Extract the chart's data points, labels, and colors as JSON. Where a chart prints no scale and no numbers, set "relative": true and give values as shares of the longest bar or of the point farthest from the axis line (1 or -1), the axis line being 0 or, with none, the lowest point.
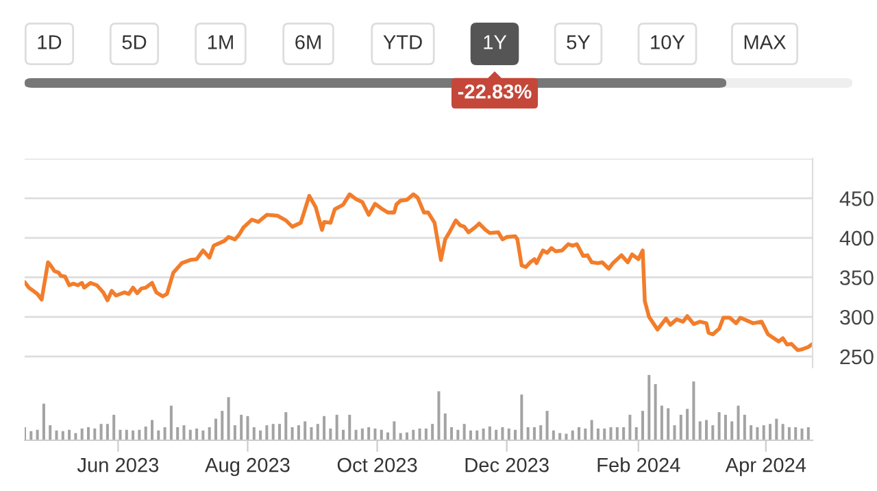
{
  "chart_data": [
    {
      "type": "line",
      "color": "#f27d2b",
      "annotations": [
        "1D",
        "5D",
        "1M",
        "6M",
        "YTD",
        "1Y",
        "5Y",
        "10Y",
        "MAX",
        "-22.83%"
      ],
      "x": [
        "2023-04-18",
        "2023-04-20",
        "2023-04-22",
        "2023-04-24",
        "2023-04-26",
        "2023-04-29",
        "2023-04-30",
        "2023-05-02",
        "2023-05-04",
        "2023-05-05",
        "2023-05-07",
        "2023-05-09",
        "2023-05-11",
        "2023-05-13",
        "2023-05-15",
        "2023-05-16",
        "2023-05-19",
        "2023-05-22",
        "2023-05-25",
        "2023-05-27",
        "2023-05-29",
        "2023-05-31",
        "2023-06-04",
        "2023-06-06",
        "2023-06-08",
        "2023-06-10",
        "2023-06-12",
        "2023-06-14",
        "2023-06-17",
        "2023-06-19",
        "2023-06-22",
        "2023-06-24",
        "2023-06-27",
        "2023-07-01",
        "2023-07-05",
        "2023-07-08",
        "2023-07-11",
        "2023-07-14",
        "2023-07-16",
        "2023-07-21",
        "2023-07-23",
        "2023-07-26",
        "2023-07-28",
        "2023-07-30",
        "2023-08-03",
        "2023-08-06",
        "2023-08-10",
        "2023-08-15",
        "2023-08-19",
        "2023-08-22",
        "2023-08-26",
        "2023-08-30",
        "2023-09-02",
        "2023-09-05",
        "2023-09-06",
        "2023-09-09",
        "2023-09-11",
        "2023-09-15",
        "2023-09-18",
        "2023-09-21",
        "2023-09-24",
        "2023-09-27",
        "2023-09-30",
        "2023-10-03",
        "2023-10-06",
        "2023-10-09",
        "2023-10-10",
        "2023-10-12",
        "2023-10-15",
        "2023-10-18",
        "2023-10-20",
        "2023-10-23",
        "2023-10-25",
        "2023-10-28",
        "2023-10-31",
        "2023-11-02",
        "2023-11-04",
        "2023-11-07",
        "2023-11-09",
        "2023-11-11",
        "2023-11-13",
        "2023-11-16",
        "2023-11-18",
        "2023-11-21",
        "2023-11-23",
        "2023-11-27",
        "2023-11-29",
        "2023-12-01",
        "2023-12-05",
        "2023-12-06",
        "2023-12-08",
        "2023-12-10",
        "2023-12-12",
        "2023-12-14",
        "2023-12-15",
        "2023-12-18",
        "2023-12-20",
        "2023-12-22",
        "2023-12-24",
        "2023-12-27",
        "2023-12-30",
        "2024-01-01",
        "2024-01-03",
        "2024-01-06",
        "2024-01-08",
        "2024-01-10",
        "2024-01-13",
        "2024-01-15",
        "2024-01-18",
        "2024-01-20",
        "2024-01-24",
        "2024-01-27",
        "2024-01-29",
        "2024-02-01",
        "2024-02-03",
        "2024-02-04",
        "2024-02-06",
        "2024-02-10",
        "2024-02-12",
        "2024-02-14",
        "2024-02-16",
        "2024-02-19",
        "2024-02-22",
        "2024-02-24",
        "2024-02-27",
        "2024-03-01",
        "2024-03-04",
        "2024-03-05",
        "2024-03-07",
        "2024-03-10",
        "2024-03-12",
        "2024-03-15",
        "2024-03-18",
        "2024-03-20",
        "2024-03-26",
        "2024-03-30",
        "2024-04-02",
        "2024-04-07",
        "2024-04-09",
        "2024-04-11",
        "2024-04-13",
        "2024-04-16",
        "2024-04-18",
        "2024-04-21",
        "2024-04-23"
      ],
      "values": [
        344,
        337,
        333,
        329,
        322,
        369,
        366,
        358,
        356,
        352,
        351,
        340,
        342,
        340,
        343,
        337,
        343,
        340,
        331,
        321,
        333,
        327,
        331,
        329,
        337,
        330,
        336,
        337,
        343,
        331,
        326,
        329,
        356,
        368,
        372,
        373,
        384,
        375,
        390,
        396,
        401,
        398,
        404,
        413,
        423,
        420,
        429,
        428,
        422,
        414,
        419,
        453,
        439,
        410,
        420,
        419,
        436,
        442,
        455,
        449,
        445,
        429,
        443,
        437,
        432,
        432,
        442,
        447,
        448,
        455,
        451,
        432,
        432,
        419,
        372,
        398,
        407,
        422,
        416,
        414,
        407,
        413,
        418,
        410,
        406,
        407,
        398,
        401,
        402,
        398,
        365,
        363,
        369,
        373,
        368,
        384,
        381,
        387,
        383,
        384,
        392,
        390,
        392,
        377,
        378,
        369,
        368,
        369,
        361,
        368,
        378,
        369,
        379,
        373,
        384,
        320,
        300,
        284,
        291,
        298,
        290,
        297,
        294,
        301,
        291,
        294,
        292,
        280,
        278,
        285,
        299,
        299,
        292,
        299,
        292,
        294,
        278,
        269,
        273,
        265,
        266,
        258,
        259,
        262,
        266
      ],
      "xlim": [
        "2023-04-18",
        "2024-04-23"
      ],
      "ylim": [
        236,
        500
      ],
      "yticks": [
        {
          "value": 500,
          "label": null
        },
        450,
        400,
        350,
        300,
        250
      ],
      "grid": "y",
      "tick_labels": "y"
    },
    {
      "type": "bar",
      "color": "#a3a3a3",
      "relative": true,
      "x": [
        "2023-04-18",
        "2023-04-21",
        "2023-04-24",
        "2023-04-27",
        "2023-04-30",
        "2023-05-03",
        "2023-05-06",
        "2023-05-09",
        "2023-05-12",
        "2023-05-15",
        "2023-05-18",
        "2023-05-21",
        "2023-05-24",
        "2023-05-27",
        "2023-05-30",
        "2023-06-02",
        "2023-06-05",
        "2023-06-08",
        "2023-06-11",
        "2023-06-14",
        "2023-06-17",
        "2023-06-20",
        "2023-06-23",
        "2023-06-26",
        "2023-06-29",
        "2023-07-02",
        "2023-07-05",
        "2023-07-08",
        "2023-07-11",
        "2023-07-14",
        "2023-07-17",
        "2023-07-20",
        "2023-07-23",
        "2023-07-26",
        "2023-07-29",
        "2023-08-01",
        "2023-08-04",
        "2023-08-07",
        "2023-08-10",
        "2023-08-13",
        "2023-08-16",
        "2023-08-19",
        "2023-08-22",
        "2023-08-25",
        "2023-08-28",
        "2023-08-31",
        "2023-09-03",
        "2023-09-06",
        "2023-09-09",
        "2023-09-12",
        "2023-09-15",
        "2023-09-18",
        "2023-09-21",
        "2023-09-24",
        "2023-09-27",
        "2023-09-30",
        "2023-10-03",
        "2023-10-06",
        "2023-10-09",
        "2023-10-12",
        "2023-10-15",
        "2023-10-18",
        "2023-10-21",
        "2023-10-24",
        "2023-10-27",
        "2023-10-30",
        "2023-11-02",
        "2023-11-05",
        "2023-11-08",
        "2023-11-11",
        "2023-11-14",
        "2023-11-17",
        "2023-11-20",
        "2023-11-23",
        "2023-11-26",
        "2023-11-29",
        "2023-12-02",
        "2023-12-05",
        "2023-12-08",
        "2023-12-11",
        "2023-12-14",
        "2023-12-17",
        "2023-12-20",
        "2023-12-23",
        "2023-12-26",
        "2023-12-29",
        "2024-01-01",
        "2024-01-04",
        "2024-01-07",
        "2024-01-10",
        "2024-01-13",
        "2024-01-16",
        "2024-01-19",
        "2024-01-22",
        "2024-01-25",
        "2024-01-28",
        "2024-01-31",
        "2024-02-03",
        "2024-02-06",
        "2024-02-09",
        "2024-02-12",
        "2024-02-15",
        "2024-02-18",
        "2024-02-21",
        "2024-02-24",
        "2024-02-27",
        "2024-03-01",
        "2024-03-04",
        "2024-03-07",
        "2024-03-10",
        "2024-03-13",
        "2024-03-16",
        "2024-03-19",
        "2024-03-22",
        "2024-03-25",
        "2024-03-28",
        "2024-03-31",
        "2024-04-03",
        "2024-04-06",
        "2024-04-09",
        "2024-04-12",
        "2024-04-15",
        "2024-04-18",
        "2024-04-21"
      ],
      "values": [
        0.2,
        0.14,
        0.16,
        0.56,
        0.23,
        0.15,
        0.14,
        0.16,
        0.11,
        0.18,
        0.2,
        0.18,
        0.25,
        0.25,
        0.39,
        0.16,
        0.16,
        0.15,
        0.16,
        0.21,
        0.31,
        0.15,
        0.2,
        0.53,
        0.2,
        0.23,
        0.16,
        0.18,
        0.15,
        0.2,
        0.33,
        0.45,
        0.66,
        0.23,
        0.39,
        0.37,
        0.2,
        0.15,
        0.23,
        0.25,
        0.25,
        0.43,
        0.2,
        0.23,
        0.29,
        0.2,
        0.25,
        0.37,
        0.18,
        0.39,
        0.16,
        0.39,
        0.16,
        0.18,
        0.2,
        0.18,
        0.16,
        0.12,
        0.29,
        0.11,
        0.12,
        0.16,
        0.18,
        0.18,
        0.25,
        0.75,
        0.41,
        0.2,
        0.16,
        0.25,
        0.15,
        0.15,
        0.18,
        0.21,
        0.16,
        0.2,
        0.18,
        0.16,
        0.7,
        0.2,
        0.2,
        0.23,
        0.45,
        0.15,
        0.11,
        0.1,
        0.15,
        0.2,
        0.18,
        0.31,
        0.18,
        0.18,
        0.2,
        0.2,
        0.2,
        0.39,
        0.2,
        0.45,
        1,
        0.86,
        0.53,
        0.49,
        0.23,
        0.39,
        0.48,
        0.9,
        0.29,
        0.31,
        0.23,
        0.43,
        0.39,
        0.29,
        0.53,
        0.39,
        0.23,
        0.2,
        0.23,
        0.25,
        0.33,
        0.25,
        0.2,
        0.2,
        0.18,
        0.2
      ],
      "xlim": [
        "2023-04-18",
        "2024-04-23"
      ],
      "xticks": [
        {
          "value": "2023-06-01",
          "label": "Jun 2023"
        },
        {
          "value": "2023-08-01",
          "label": "Aug 2023"
        },
        {
          "value": "2023-10-01",
          "label": "Oct 2023"
        },
        {
          "value": "2023-12-01",
          "label": "Dec 2023"
        },
        {
          "value": "2024-02-01",
          "label": "Feb 2024"
        },
        {
          "value": "2024-04-01",
          "label": "Apr 2024"
        }
      ],
      "tick_labels": "x"
    }
  ]
}
